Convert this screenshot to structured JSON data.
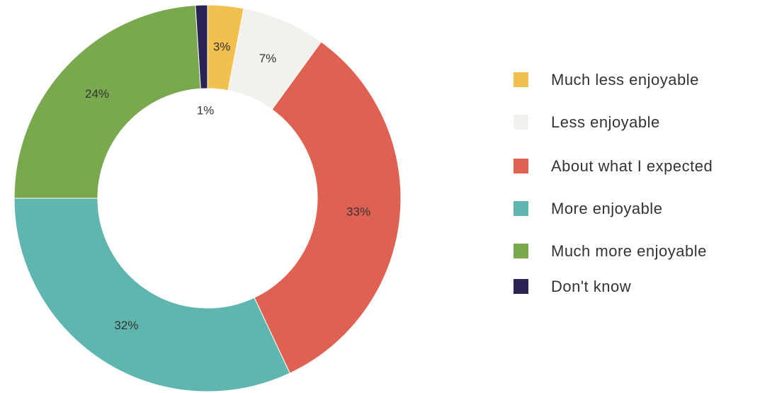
{
  "chart_data": {
    "type": "pie",
    "donut": true,
    "categories": [
      "Much less enjoyable",
      "Less enjoyable",
      "About what I expected",
      "More enjoyable",
      "Much more enjoyable",
      "Don't know"
    ],
    "values": [
      3,
      7,
      33,
      32,
      24,
      1
    ],
    "value_labels": [
      "3%",
      "7%",
      "33%",
      "32%",
      "24%",
      "1%"
    ],
    "colors": [
      "#f2c04e",
      "#f3f1ec",
      "#de6152",
      "#5fb6ae",
      "#7aa84e",
      "#2a2455"
    ],
    "legend": "right"
  }
}
